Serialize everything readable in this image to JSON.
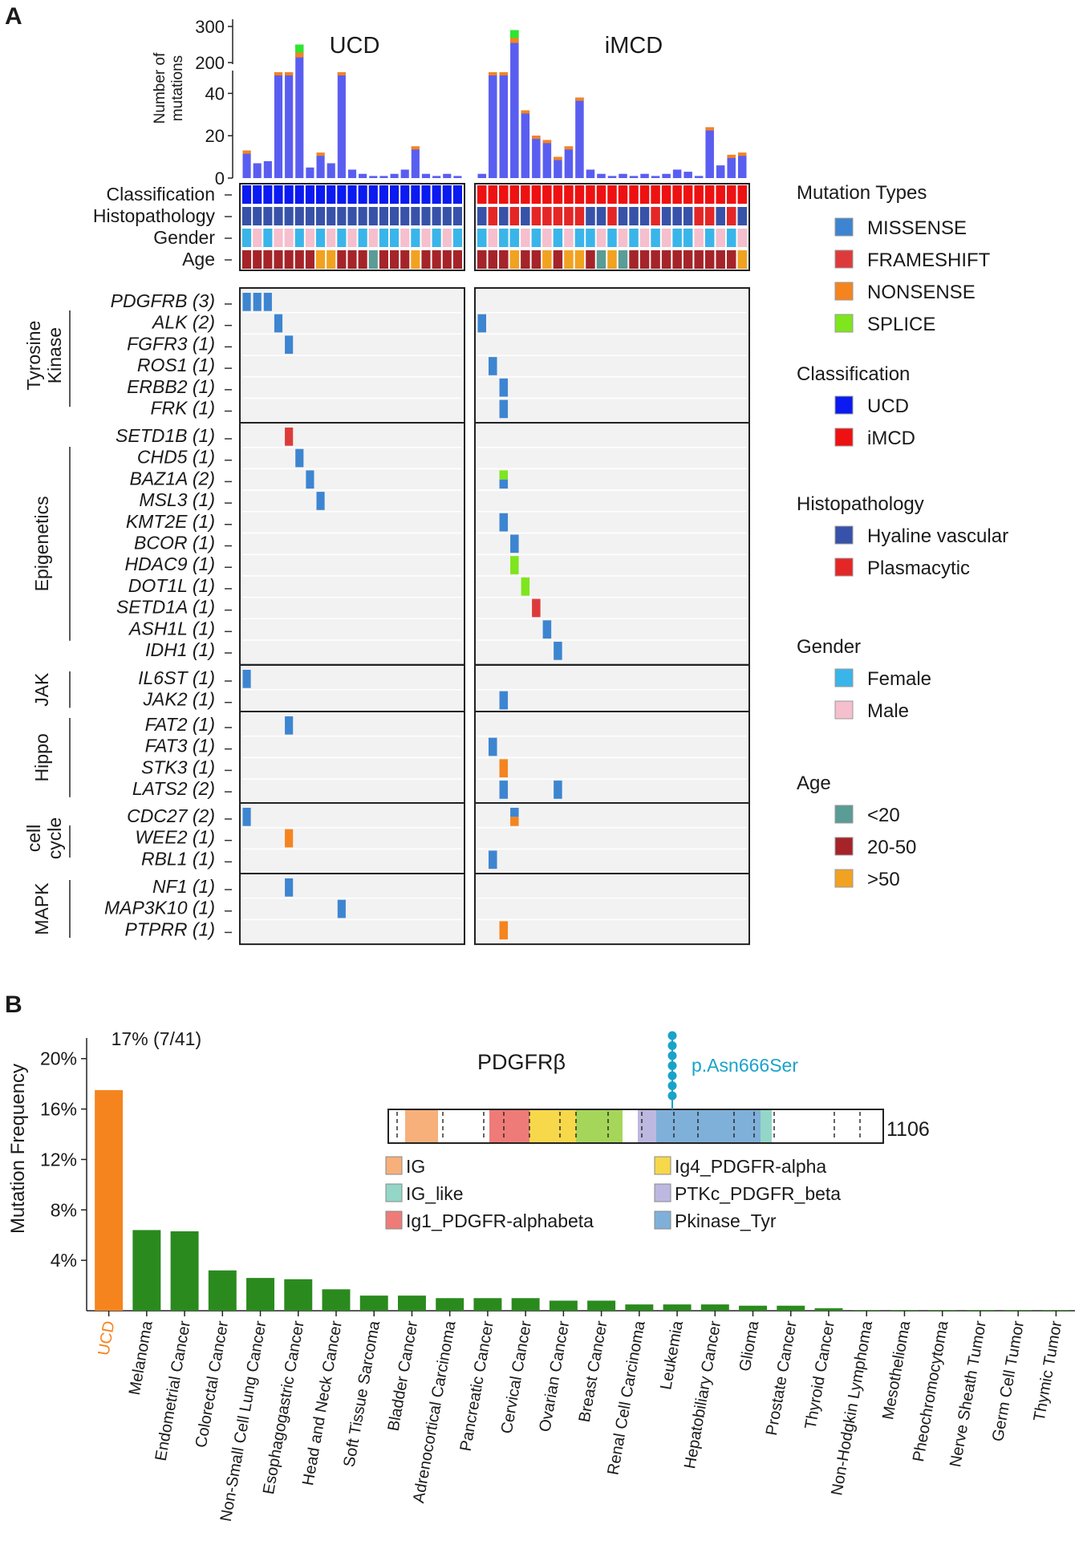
{
  "panel_labels": {
    "a": "A",
    "b": "B"
  },
  "chart_data": [
    {
      "type": "heatmap",
      "title_left": "UCD",
      "title_right": "iMCD",
      "top_bar": {
        "ylabel": "Number of mutations",
        "ticks_lower": [
          "0",
          "20",
          "40"
        ],
        "ticks_upper": [
          "200",
          "300"
        ],
        "ucd_values": [
          13,
          7,
          8,
          50,
          50,
          250,
          5,
          12,
          7,
          50,
          4,
          2,
          1,
          1,
          2,
          4,
          15,
          2,
          1,
          2,
          1
        ],
        "imcd_values": [
          2,
          50,
          50,
          290,
          32,
          20,
          18,
          10,
          15,
          38,
          4,
          2,
          1,
          2,
          1,
          2,
          1,
          2,
          4,
          3,
          1,
          24,
          6,
          11,
          12
        ]
      },
      "clinical_rows": [
        "Classification",
        "Histopathology",
        "Gender",
        "Age"
      ],
      "clinical": {
        "ucd": {
          "classification": [
            "U",
            "U",
            "U",
            "U",
            "U",
            "U",
            "U",
            "U",
            "U",
            "U",
            "U",
            "U",
            "U",
            "U",
            "U",
            "U",
            "U",
            "U",
            "U",
            "U",
            "U"
          ],
          "histopathology": [
            "H",
            "H",
            "H",
            "H",
            "H",
            "H",
            "H",
            "H",
            "H",
            "H",
            "H",
            "H",
            "H",
            "H",
            "H",
            "H",
            "H",
            "H",
            "H",
            "H",
            "H"
          ],
          "gender": [
            "F",
            "M",
            "F",
            "M",
            "M",
            "F",
            "M",
            "F",
            "M",
            "F",
            "M",
            "F",
            "M",
            "F",
            "F",
            "M",
            "F",
            "M",
            "F",
            "M",
            "F"
          ],
          "age": [
            "A",
            "A",
            "A",
            "A",
            "A",
            "A",
            "A",
            "O",
            "O",
            "A",
            "A",
            "A",
            "C",
            "A",
            "A",
            "A",
            "O",
            "A",
            "A",
            "A",
            "A"
          ]
        },
        "imcd": {
          "classification": [
            "I",
            "I",
            "I",
            "I",
            "I",
            "I",
            "I",
            "I",
            "I",
            "I",
            "I",
            "I",
            "I",
            "I",
            "I",
            "I",
            "I",
            "I",
            "I",
            "I",
            "I",
            "I",
            "I",
            "I",
            "I"
          ],
          "histopathology": [
            "H",
            "P",
            "H",
            "P",
            "H",
            "P",
            "P",
            "P",
            "P",
            "P",
            "H",
            "H",
            "P",
            "H",
            "H",
            "H",
            "P",
            "H",
            "H",
            "H",
            "P",
            "P",
            "H",
            "P",
            "H"
          ],
          "gender": [
            "F",
            "M",
            "F",
            "F",
            "M",
            "F",
            "M",
            "F",
            "M",
            "F",
            "F",
            "M",
            "F",
            "M",
            "F",
            "M",
            "F",
            "M",
            "F",
            "F",
            "M",
            "F",
            "M",
            "F",
            "M"
          ],
          "age": [
            "A",
            "A",
            "A",
            "O",
            "A",
            "A",
            "O",
            "A",
            "O",
            "O",
            "A",
            "C",
            "O",
            "C",
            "A",
            "A",
            "A",
            "A",
            "A",
            "A",
            "A",
            "A",
            "A",
            "A",
            "O"
          ]
        }
      },
      "groups": [
        {
          "name": "Tyrosine Kinase",
          "name_lines": [
            "Tyrosine",
            "Kinase"
          ],
          "genes": [
            "PDGFRB (3)",
            "ALK (2)",
            "FGFR3 (1)",
            "ROS1 (1)",
            "ERBB2 (1)",
            "FRK (1)"
          ]
        },
        {
          "name": "Epigenetics",
          "name_lines": [
            "Epigenetics"
          ],
          "genes": [
            "SETD1B (1)",
            "CHD5 (1)",
            "BAZ1A (2)",
            "MSL3 (1)",
            "KMT2E (1)",
            "BCOR (1)",
            "HDAC9 (1)",
            "DOT1L (1)",
            "SETD1A (1)",
            "ASH1L (1)",
            "IDH1 (1)"
          ]
        },
        {
          "name": "JAK",
          "name_lines": [
            "JAK"
          ],
          "genes": [
            "IL6ST (1)",
            "JAK2 (1)"
          ]
        },
        {
          "name": "Hippo",
          "name_lines": [
            "Hippo"
          ],
          "genes": [
            "FAT2 (1)",
            "FAT3 (1)",
            "STK3 (1)",
            "LATS2 (2)"
          ]
        },
        {
          "name": "cell cycle",
          "name_lines": [
            "cell",
            "cycle"
          ],
          "genes": [
            "CDC27 (2)",
            "WEE2 (1)",
            "RBL1 (1)"
          ]
        },
        {
          "name": "MAPK",
          "name_lines": [
            "MAPK"
          ],
          "genes": [
            "NF1 (1)",
            "MAP3K10 (1)",
            "PTPRR (1)"
          ]
        }
      ],
      "mutations": [
        {
          "gene": "PDGFRB (3)",
          "cohort": "ucd",
          "sample": 0,
          "type": "MISSENSE"
        },
        {
          "gene": "PDGFRB (3)",
          "cohort": "ucd",
          "sample": 1,
          "type": "MISSENSE"
        },
        {
          "gene": "PDGFRB (3)",
          "cohort": "ucd",
          "sample": 2,
          "type": "MISSENSE"
        },
        {
          "gene": "ALK (2)",
          "cohort": "ucd",
          "sample": 3,
          "type": "MISSENSE"
        },
        {
          "gene": "ALK (2)",
          "cohort": "imcd",
          "sample": 0,
          "type": "MISSENSE"
        },
        {
          "gene": "FGFR3 (1)",
          "cohort": "ucd",
          "sample": 4,
          "type": "MISSENSE"
        },
        {
          "gene": "ROS1 (1)",
          "cohort": "imcd",
          "sample": 1,
          "type": "MISSENSE"
        },
        {
          "gene": "ERBB2 (1)",
          "cohort": "imcd",
          "sample": 2,
          "type": "MISSENSE"
        },
        {
          "gene": "FRK (1)",
          "cohort": "imcd",
          "sample": 2,
          "type": "MISSENSE"
        },
        {
          "gene": "SETD1B (1)",
          "cohort": "ucd",
          "sample": 4,
          "type": "FRAMESHIFT"
        },
        {
          "gene": "CHD5 (1)",
          "cohort": "ucd",
          "sample": 5,
          "type": "MISSENSE"
        },
        {
          "gene": "BAZ1A (2)",
          "cohort": "ucd",
          "sample": 6,
          "type": "MISSENSE"
        },
        {
          "gene": "BAZ1A (2)",
          "cohort": "imcd",
          "sample": 2,
          "type": "SPLICE+MISSENSE"
        },
        {
          "gene": "MSL3 (1)",
          "cohort": "ucd",
          "sample": 7,
          "type": "MISSENSE"
        },
        {
          "gene": "KMT2E (1)",
          "cohort": "imcd",
          "sample": 2,
          "type": "MISSENSE"
        },
        {
          "gene": "BCOR (1)",
          "cohort": "imcd",
          "sample": 3,
          "type": "MISSENSE"
        },
        {
          "gene": "HDAC9 (1)",
          "cohort": "imcd",
          "sample": 3,
          "type": "SPLICE"
        },
        {
          "gene": "DOT1L (1)",
          "cohort": "imcd",
          "sample": 4,
          "type": "SPLICE"
        },
        {
          "gene": "SETD1A (1)",
          "cohort": "imcd",
          "sample": 5,
          "type": "FRAMESHIFT"
        },
        {
          "gene": "ASH1L (1)",
          "cohort": "imcd",
          "sample": 6,
          "type": "MISSENSE"
        },
        {
          "gene": "IDH1 (1)",
          "cohort": "imcd",
          "sample": 7,
          "type": "MISSENSE"
        },
        {
          "gene": "IL6ST (1)",
          "cohort": "ucd",
          "sample": 0,
          "type": "MISSENSE"
        },
        {
          "gene": "JAK2 (1)",
          "cohort": "imcd",
          "sample": 2,
          "type": "MISSENSE"
        },
        {
          "gene": "FAT2 (1)",
          "cohort": "ucd",
          "sample": 4,
          "type": "MISSENSE"
        },
        {
          "gene": "FAT3 (1)",
          "cohort": "imcd",
          "sample": 1,
          "type": "MISSENSE"
        },
        {
          "gene": "STK3 (1)",
          "cohort": "imcd",
          "sample": 2,
          "type": "NONSENSE"
        },
        {
          "gene": "LATS2 (2)",
          "cohort": "imcd",
          "sample": 2,
          "type": "MISSENSE"
        },
        {
          "gene": "LATS2 (2)",
          "cohort": "imcd",
          "sample": 7,
          "type": "MISSENSE"
        },
        {
          "gene": "CDC27 (2)",
          "cohort": "ucd",
          "sample": 0,
          "type": "MISSENSE"
        },
        {
          "gene": "CDC27 (2)",
          "cohort": "imcd",
          "sample": 3,
          "type": "MISSENSE+NONSENSE"
        },
        {
          "gene": "WEE2 (1)",
          "cohort": "ucd",
          "sample": 4,
          "type": "NONSENSE"
        },
        {
          "gene": "RBL1 (1)",
          "cohort": "imcd",
          "sample": 1,
          "type": "MISSENSE"
        },
        {
          "gene": "NF1 (1)",
          "cohort": "ucd",
          "sample": 4,
          "type": "MISSENSE"
        },
        {
          "gene": "MAP3K10 (1)",
          "cohort": "ucd",
          "sample": 9,
          "type": "MISSENSE"
        },
        {
          "gene": "PTPRR (1)",
          "cohort": "imcd",
          "sample": 2,
          "type": "NONSENSE"
        }
      ],
      "legend": [
        {
          "title": "Mutation Types",
          "items": [
            {
              "label": "MISSENSE",
              "color": "#3d85d1"
            },
            {
              "label": "FRAMESHIFT",
              "color": "#dd3b3b"
            },
            {
              "label": "NONSENSE",
              "color": "#f5841f"
            },
            {
              "label": "SPLICE",
              "color": "#7ee51e"
            }
          ]
        },
        {
          "title": "Classification",
          "items": [
            {
              "label": "UCD",
              "color": "#0a1af0"
            },
            {
              "label": "iMCD",
              "color": "#ee1111"
            }
          ]
        },
        {
          "title": "Histopathology",
          "items": [
            {
              "label": "Hyaline vascular",
              "color": "#3752a8"
            },
            {
              "label": "Plasmacytic",
              "color": "#e52626"
            }
          ]
        },
        {
          "title": "Gender",
          "items": [
            {
              "label": "Female",
              "color": "#3ab5ea"
            },
            {
              "label": "Male",
              "color": "#f5bfcd"
            }
          ]
        },
        {
          "title": "Age",
          "items": [
            {
              "label": "<20",
              "color": "#5a9c96"
            },
            {
              "label": "20-50",
              "color": "#a52429"
            },
            {
              "label": ">50",
              "color": "#f2a221"
            }
          ]
        }
      ]
    },
    {
      "type": "bar",
      "ylabel": "Mutation Frequency",
      "ylim": [
        0,
        21
      ],
      "yticks": [
        4,
        8,
        12,
        16,
        20
      ],
      "ytick_labels": [
        "4%",
        "8%",
        "12%",
        "16%",
        "20%"
      ],
      "categories": [
        "UCD",
        "Melanoma",
        "Endometrial Cancer",
        "Colorectal Cancer",
        "Non-Small Cell Lung Cancer",
        "Esophagogastric Cancer",
        "Head and Neck Cancer",
        "Soft Tissue Sarcoma",
        "Bladder Cancer",
        "Adrenocortical Carcinoma",
        "Pancreatic Cancer",
        "Cervical Cancer",
        "Ovarian Cancer",
        "Breast Cancer",
        "Renal Cell Carcinoma",
        "Leukemia",
        "Hepatobiliary Cancer",
        "Glioma",
        "Prostate Cancer",
        "Thyroid Cancer",
        "Non-Hodgkin Lymphoma",
        "Mesothelioma",
        "Pheochromocytoma",
        "Nerve Sheath Tumor",
        "Germ Cell Tumor",
        "Thymic Tumor"
      ],
      "values": [
        17.5,
        6.4,
        6.3,
        3.2,
        2.6,
        2.5,
        1.7,
        1.2,
        1.2,
        1.0,
        1.0,
        1.0,
        0.8,
        0.8,
        0.5,
        0.5,
        0.5,
        0.4,
        0.4,
        0.2,
        0.05,
        0.05,
        0.05,
        0.05,
        0.05,
        0.05
      ],
      "highlight": {
        "category": "UCD",
        "color": "#f5841f",
        "annotation": "17% (7/41)"
      },
      "bar_color": "#2a8a1e",
      "inset": {
        "title": "PDGFRβ",
        "length_label": "1106",
        "variant": "p.Asn666Ser",
        "variant_color": "#1aa3c9",
        "domains": [
          {
            "label": "IG",
            "color": "#f7b07a"
          },
          {
            "label": "IG_like",
            "color": "#94d6c7"
          },
          {
            "label": "Ig1_PDGFR-alphabeta",
            "color": "#ee7b78"
          },
          {
            "label": "Ig4_PDGFR-alpha",
            "color": "#f7d84a"
          },
          {
            "label": "PTKc_PDGFR_beta",
            "color": "#bdb8e0"
          },
          {
            "label": "Pkinase_Tyr",
            "color": "#7fb0d9"
          }
        ]
      }
    }
  ]
}
